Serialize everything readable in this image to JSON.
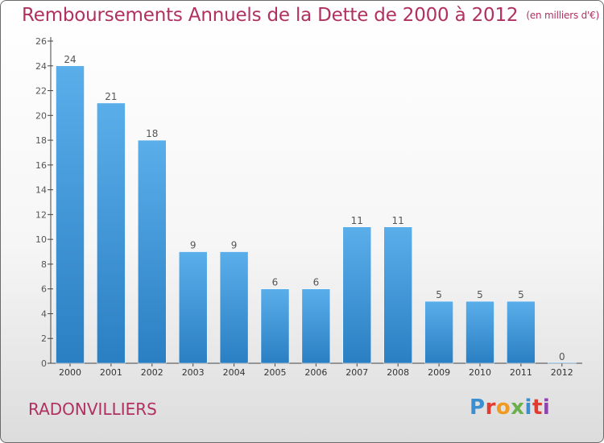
{
  "header": {
    "title": "Remboursements Annuels de la Dette de 2000 à 2012",
    "unit": "(en milliers d'€)"
  },
  "footer": {
    "commune": "RADONVILLIERS",
    "logo": "Proxiti",
    "logo_colors": [
      "#3b8fd0",
      "#e03c31",
      "#f29a1f",
      "#6ab04c",
      "#3b8fd0",
      "#e03c31",
      "#8e44ad"
    ]
  },
  "colors": {
    "bar_top": "#5aaeea",
    "bar_bottom": "#2a7fc3",
    "text": "#555555",
    "axis": "#444444",
    "brand": "#b03060"
  },
  "chart_data": {
    "type": "bar",
    "title": "Remboursements Annuels de la Dette de 2000 à 2012",
    "subtitle": "(en milliers d'€)",
    "categories": [
      "2000",
      "2001",
      "2002",
      "2003",
      "2004",
      "2005",
      "2006",
      "2007",
      "2008",
      "2009",
      "2010",
      "2011",
      "2012"
    ],
    "values": [
      24,
      21,
      18,
      9,
      9,
      6,
      6,
      11,
      11,
      5,
      5,
      5,
      0
    ],
    "value_labels": [
      "24",
      "21",
      "18",
      "9",
      "9",
      "6",
      "6",
      "11",
      "11",
      "5",
      "5",
      "5",
      "0"
    ],
    "ylim": [
      0,
      26
    ],
    "yticks": [
      0,
      2,
      4,
      6,
      8,
      10,
      12,
      14,
      16,
      18,
      20,
      22,
      24,
      26
    ],
    "xlabel": "",
    "ylabel": "",
    "grid": false,
    "legend": "none"
  }
}
